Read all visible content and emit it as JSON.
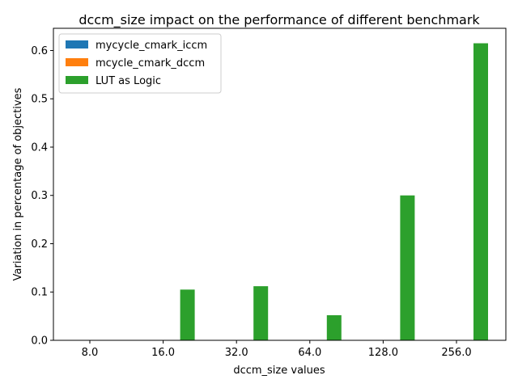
{
  "chart_data": {
    "type": "bar",
    "title": "dccm_size impact on the performance of different benchmark",
    "xlabel": "dccm_size values",
    "ylabel": "Variation in percentage of objectives",
    "categories": [
      "8.0",
      "16.0",
      "32.0",
      "64.0",
      "128.0",
      "256.0"
    ],
    "series": [
      {
        "name": "mycycle_cmark_iccm",
        "color": "#1f77b4",
        "values": [
          0,
          0,
          0,
          0,
          0,
          0
        ]
      },
      {
        "name": "mcycle_cmark_dccm",
        "color": "#ff7f0e",
        "values": [
          0,
          0,
          0,
          0,
          0,
          0
        ]
      },
      {
        "name": "LUT as Logic",
        "color": "#2ca02c",
        "values": [
          0,
          0.105,
          0.112,
          0.052,
          0.3,
          0.615
        ]
      }
    ],
    "ylim": [
      0,
      0.646
    ],
    "yticks": [
      "0.0",
      "0.1",
      "0.2",
      "0.3",
      "0.4",
      "0.5",
      "0.6"
    ],
    "grid": false,
    "legend_position": "top-left"
  }
}
